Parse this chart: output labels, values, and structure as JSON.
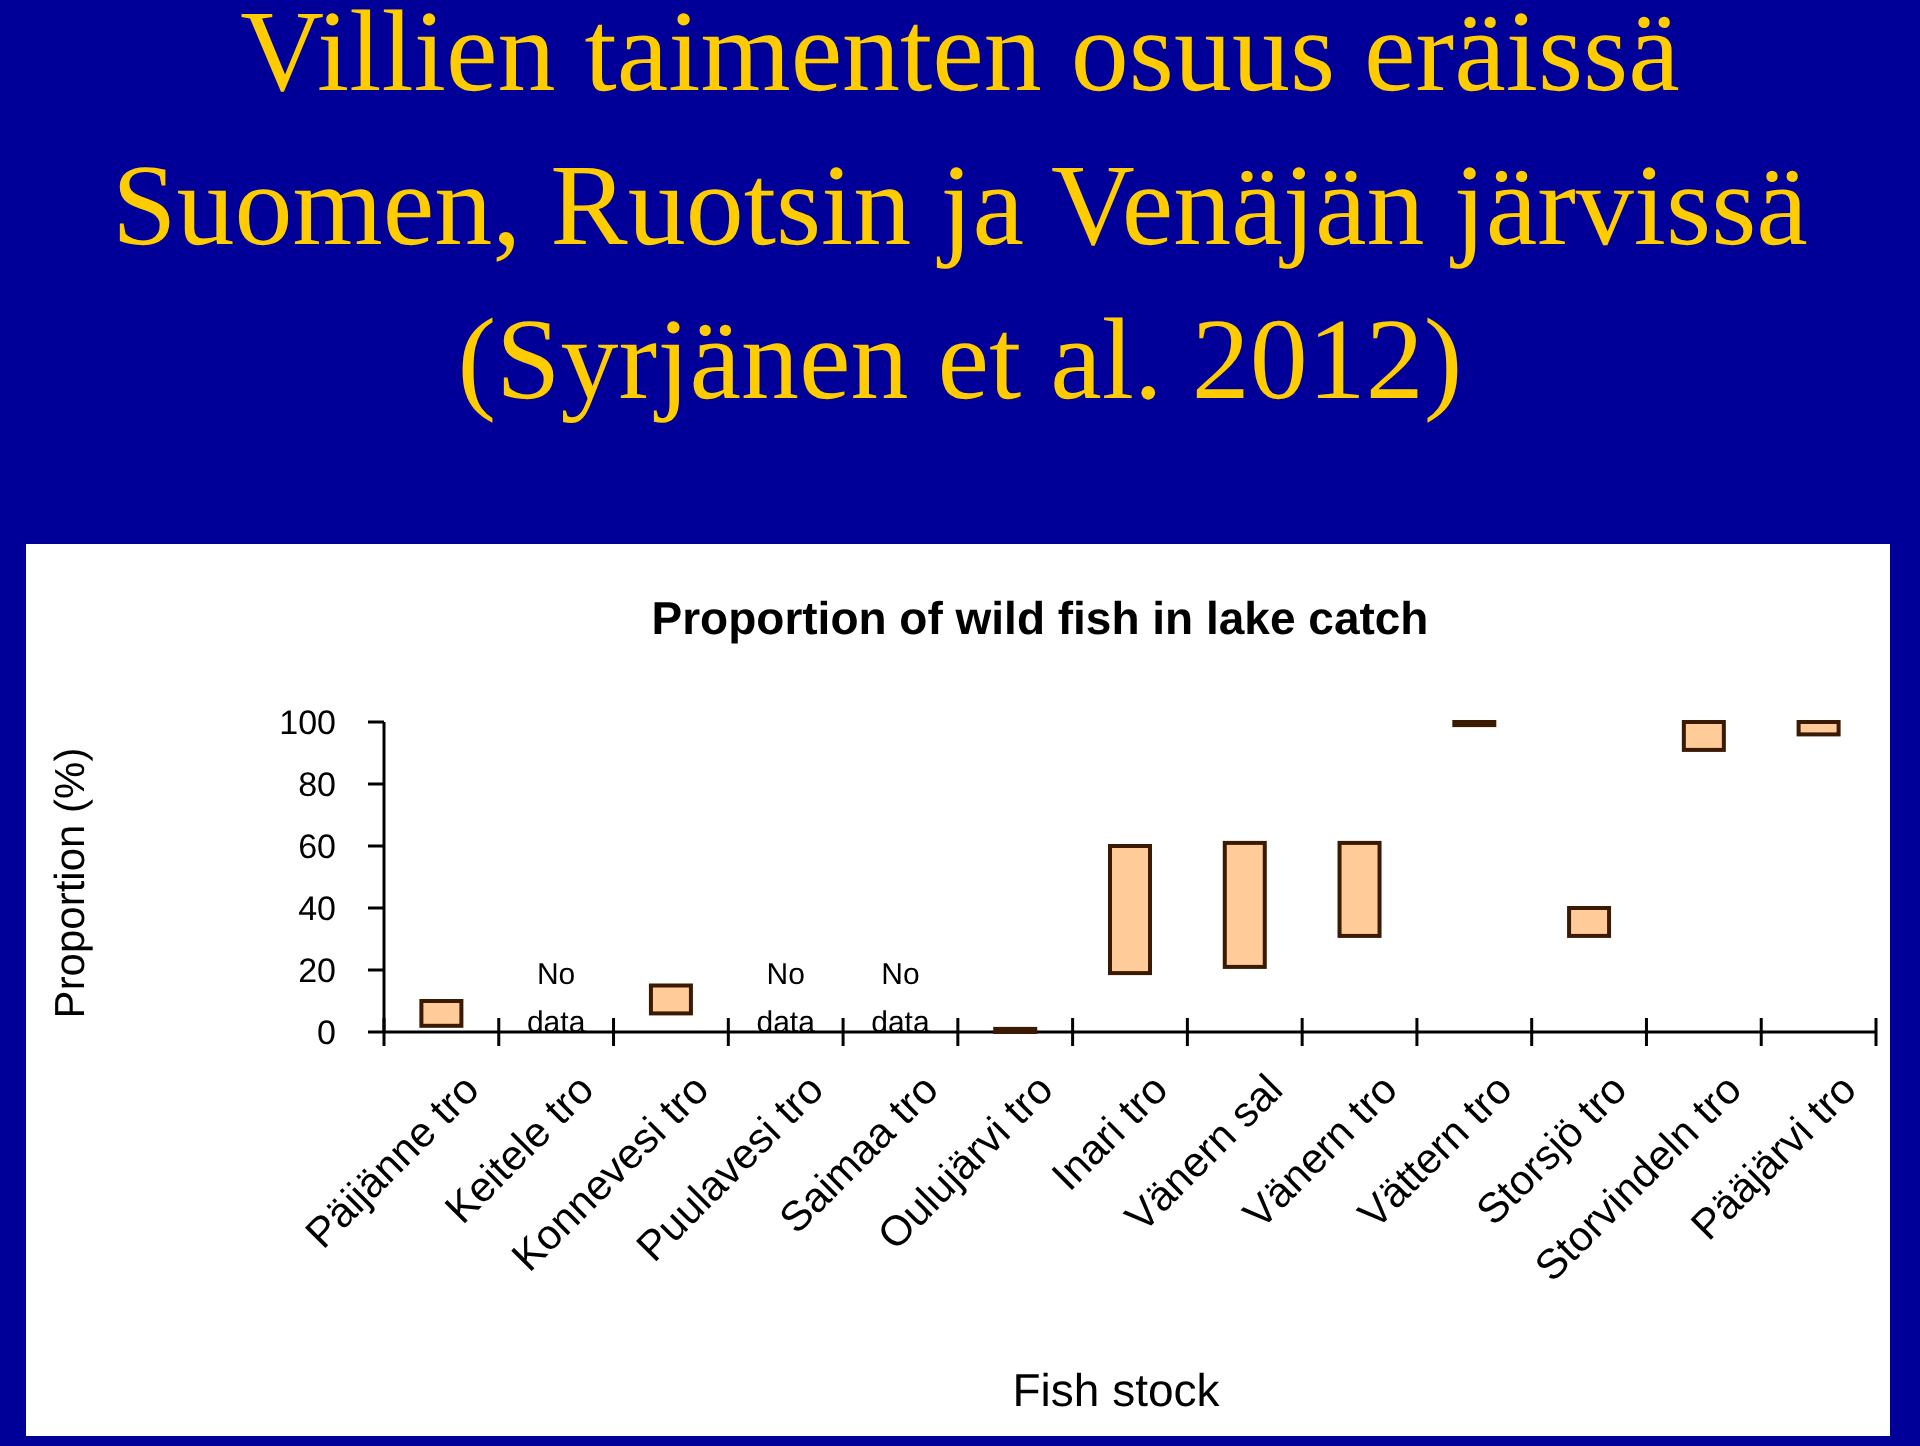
{
  "chart_data": {
    "type": "bar",
    "title": "Villien taimenten osuus eräissä\nSuomen, Ruotsin ja Venäjän järvissä\n(Syrjänen et al. 2012)",
    "subtitle": "Proportion of wild fish in lake catch",
    "xlabel": "Fish stock",
    "ylabel": "Proportion (%)",
    "categories": [
      "Päijänne tro",
      "Keitele tro",
      "Konnevesi tro",
      "Puulavesi tro",
      "Saimaa tro",
      "Oulujärvi tro",
      "Inari tro",
      "Vänern sal",
      "Vänern tro",
      "Vättern tro",
      "Storsjö tro",
      "Storvindeln tro",
      "Pääjärvi tro"
    ],
    "base": [
      2,
      null,
      6,
      null,
      null,
      0,
      19,
      21,
      31,
      99,
      31,
      91,
      96
    ],
    "values": [
      8,
      null,
      9,
      null,
      null,
      1,
      41,
      40,
      30,
      1,
      9,
      9,
      4
    ],
    "color": "#ffcc99",
    "ylim": [
      0,
      100
    ],
    "yticks": [
      0,
      20,
      40,
      60,
      80,
      100
    ],
    "grid": false,
    "annotations": [
      "No data",
      "No data",
      "No data"
    ]
  }
}
